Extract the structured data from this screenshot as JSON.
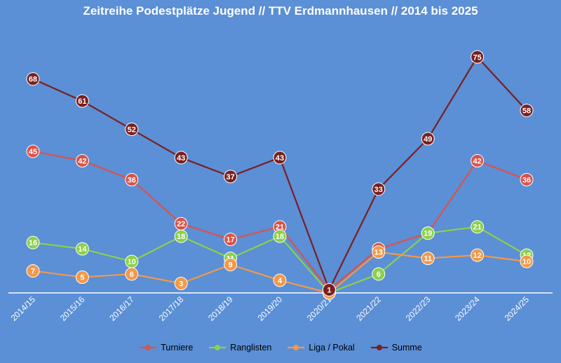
{
  "chart_data": {
    "type": "line",
    "title": "Zeitreihe Podestplätze Jugend // TTV Erdmannhausen // 2014 bis 2025",
    "xlabel": "",
    "ylabel": "",
    "categories": [
      "2014/15",
      "2015/16",
      "2016/17",
      "2017/18",
      "2018/19",
      "2019/20",
      "2020/21",
      "2021/22",
      "2022/23",
      "2023/24",
      "2024/25"
    ],
    "ylim": [
      0,
      85
    ],
    "grid": false,
    "legend_position": "bottom",
    "series": [
      {
        "name": "Turniere",
        "color": "#d9534a",
        "values": [
          45,
          42,
          36,
          22,
          17,
          21,
          1,
          14,
          19,
          42,
          36
        ]
      },
      {
        "name": "Ranglisten",
        "color": "#8bd14a",
        "values": [
          16,
          14,
          10,
          18,
          11,
          18,
          0,
          6,
          19,
          21,
          12
        ]
      },
      {
        "name": "Liga / Pokal",
        "color": "#f2994a",
        "values": [
          7,
          5,
          6,
          3,
          9,
          4,
          0,
          13,
          11,
          12,
          10
        ]
      },
      {
        "name": "Summe",
        "color": "#7a1f1f",
        "values": [
          68,
          61,
          52,
          43,
          37,
          43,
          1,
          33,
          49,
          75,
          58
        ]
      }
    ]
  },
  "colors": {
    "background": "#5b8fd6",
    "axis": "#ffffff",
    "text": "#ffffff"
  }
}
